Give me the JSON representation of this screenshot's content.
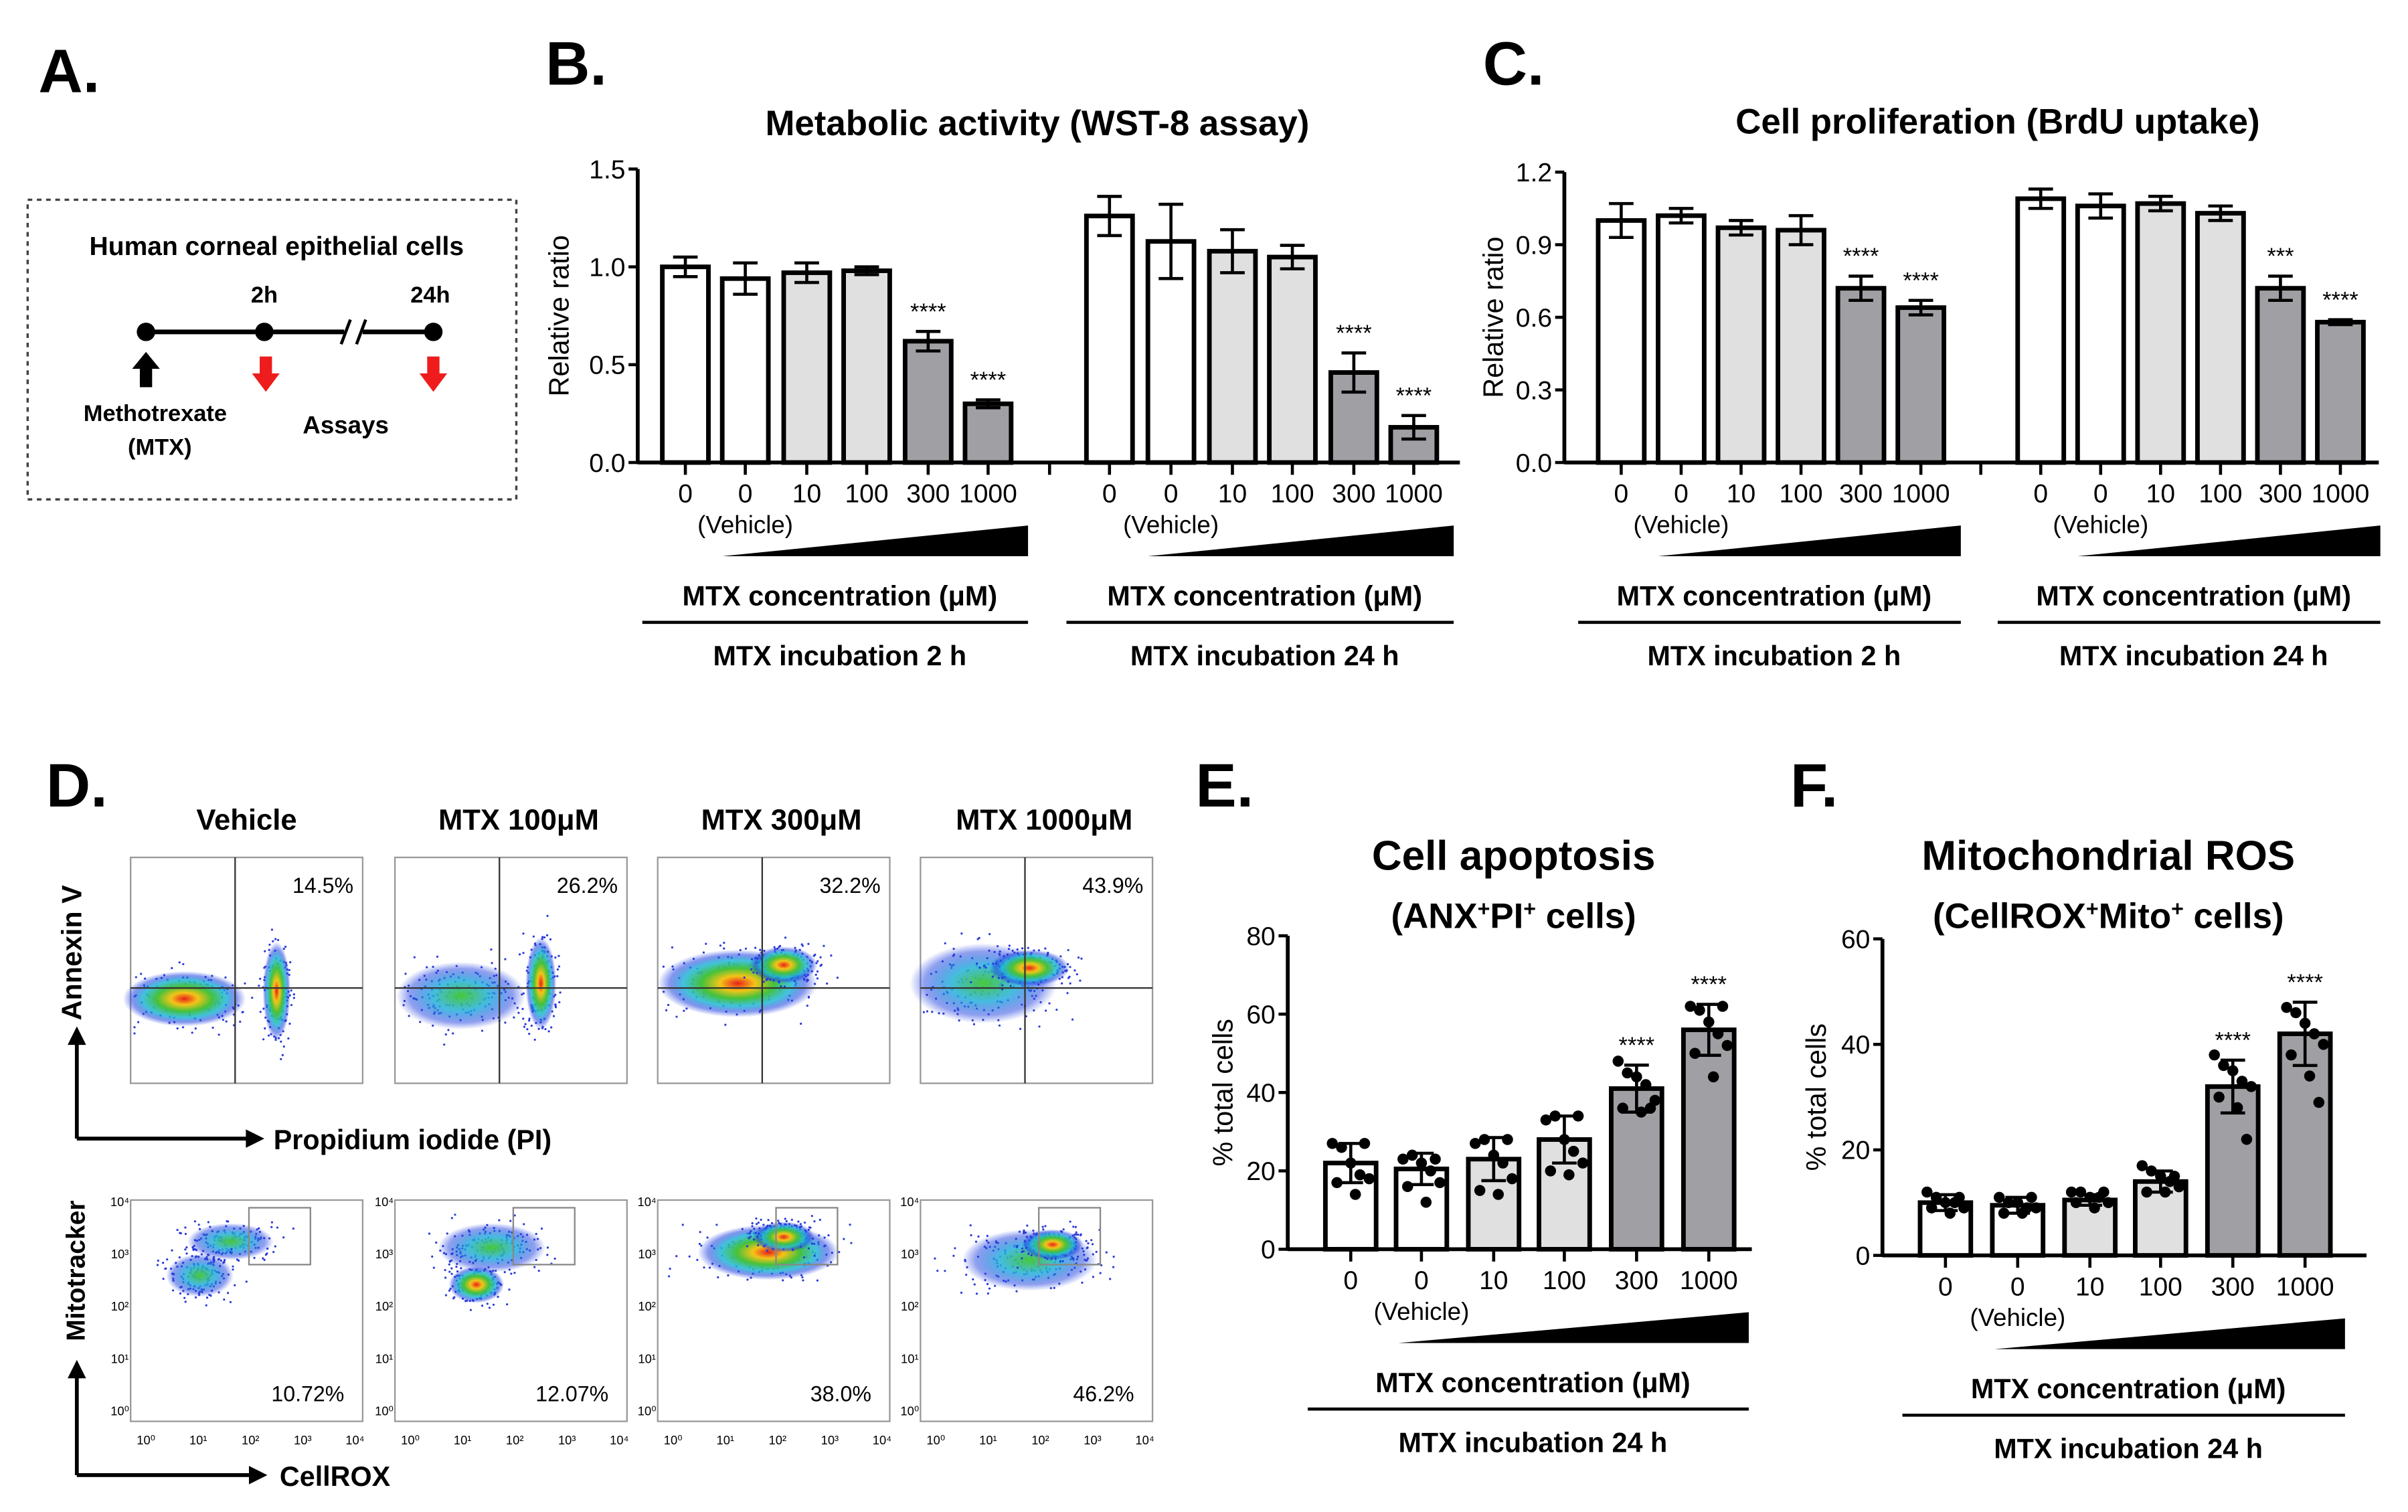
{
  "panel_letters": [
    "A.",
    "B.",
    "C.",
    "D.",
    "E.",
    "F."
  ],
  "panel_a": {
    "cell_title": "Human corneal epithelial cells",
    "time_2h": "2h",
    "time_24h": "24h",
    "drug_line1": "Methotrexate",
    "drug_line2": "(MTX)",
    "assays": "Assays",
    "title_color": "#3a2cf0",
    "assay_color": "#ee1c1c"
  },
  "panel_d": {
    "columns": [
      "Vehicle",
      "MTX 100μM",
      "MTX 300μM",
      "MTX 1000μM"
    ],
    "top_percents": [
      "14.5%",
      "26.2%",
      "32.2%",
      "43.9%"
    ],
    "bottom_percents": [
      "10.72%",
      "12.07%",
      "38.0%",
      "46.2%"
    ],
    "top_y_label": "Annexin V",
    "top_x_label": "Propidium iodide (PI)",
    "bottom_y_label": "Mitotracker",
    "bottom_x_label": "CellROX",
    "log_ticks": [
      "10⁰",
      "10¹",
      "10²",
      "10³",
      "10⁴"
    ]
  },
  "chart_data": [
    {
      "id": "B",
      "type": "bar",
      "title": "Metabolic activity (WST-8 assay)",
      "ylabel": "Relative ratio",
      "xlabel": "MTX concentration (μM)",
      "ylim": [
        0,
        1.5
      ],
      "yticks": [
        "0.0",
        "0.5",
        "1.0",
        "1.5"
      ],
      "ytick_values": [
        0,
        0.5,
        1.0,
        1.5
      ],
      "categories": [
        "0",
        "0",
        "10",
        "100",
        "300",
        "1000"
      ],
      "vehicle_label": "(Vehicle)",
      "fills": [
        "#ffffff",
        "#ffffff",
        "#e0e0e0",
        "#e0e0e0",
        "#a0a0a4",
        "#a0a0a4"
      ],
      "series": [
        {
          "name": "MTX incubation 2 h",
          "values": [
            1.0,
            0.94,
            0.97,
            0.98,
            0.62,
            0.3
          ],
          "errors": [
            0.05,
            0.08,
            0.05,
            0.02,
            0.05,
            0.02
          ],
          "significance": [
            "",
            "",
            "",
            "",
            "****",
            "****"
          ]
        },
        {
          "name": "MTX incubation 24 h",
          "values": [
            1.26,
            1.13,
            1.08,
            1.05,
            0.46,
            0.18
          ],
          "errors": [
            0.1,
            0.19,
            0.11,
            0.06,
            0.1,
            0.06
          ],
          "significance": [
            "",
            "",
            "",
            "",
            "****",
            "****"
          ]
        }
      ]
    },
    {
      "id": "C",
      "type": "bar",
      "title": "Cell proliferation (BrdU uptake)",
      "ylabel": "Relative ratio",
      "xlabel": "MTX concentration (μM)",
      "ylim": [
        0,
        1.2
      ],
      "yticks": [
        "0.0",
        "0.3",
        "0.6",
        "0.9",
        "1.2"
      ],
      "ytick_values": [
        0,
        0.3,
        0.6,
        0.9,
        1.2
      ],
      "categories": [
        "0",
        "0",
        "10",
        "100",
        "300",
        "1000"
      ],
      "vehicle_label": "(Vehicle)",
      "fills": [
        "#ffffff",
        "#ffffff",
        "#e0e0e0",
        "#e0e0e0",
        "#a0a0a4",
        "#a0a0a4"
      ],
      "series": [
        {
          "name": "MTX incubation 2 h",
          "values": [
            1.0,
            1.02,
            0.97,
            0.96,
            0.72,
            0.64
          ],
          "errors": [
            0.07,
            0.03,
            0.03,
            0.06,
            0.05,
            0.03
          ],
          "significance": [
            "",
            "",
            "",
            "",
            "****",
            "****"
          ]
        },
        {
          "name": "MTX incubation 24 h",
          "values": [
            1.09,
            1.06,
            1.07,
            1.03,
            0.72,
            0.58
          ],
          "errors": [
            0.04,
            0.05,
            0.03,
            0.03,
            0.05,
            0.01
          ],
          "significance": [
            "",
            "",
            "",
            "",
            "***",
            "****"
          ]
        }
      ]
    },
    {
      "id": "E",
      "type": "bar",
      "title": "Cell apoptosis",
      "subtitle_parts": [
        "(ANX",
        "+",
        "PI",
        "+",
        " cells)"
      ],
      "ylabel": "% total cells",
      "xlabel": "MTX concentration (μM)",
      "ylim": [
        0,
        80
      ],
      "yticks": [
        "0",
        "20",
        "40",
        "60",
        "80"
      ],
      "ytick_values": [
        0,
        20,
        40,
        60,
        80
      ],
      "categories": [
        "0",
        "0",
        "10",
        "100",
        "300",
        "1000"
      ],
      "vehicle_label": "(Vehicle)",
      "fills": [
        "#ffffff",
        "#ffffff",
        "#e0e0e0",
        "#e0e0e0",
        "#a0a0a4",
        "#a0a0a4"
      ],
      "series": [
        {
          "name": "MTX incubation 24 h",
          "values": [
            22,
            20.5,
            23,
            28,
            41,
            56
          ],
          "errors": [
            5,
            4,
            5.5,
            6,
            6,
            6.5
          ],
          "significance": [
            "",
            "",
            "",
            "",
            "****",
            "****"
          ],
          "points": [
            [
              27,
              26,
              22,
              19,
              18,
              17,
              14,
              27
            ],
            [
              23,
              24,
              22,
              20,
              17,
              16,
              12,
              23
            ],
            [
              27,
              28,
              24,
              22,
              18,
              15,
              14,
              28
            ],
            [
              33,
              34,
              28,
              25,
              22,
              20,
              19,
              34
            ],
            [
              48,
              45,
              44,
              42,
              38,
              36,
              35,
              36
            ],
            [
              62,
              61,
              58,
              55,
              52,
              50,
              44,
              62
            ]
          ]
        }
      ]
    },
    {
      "id": "F",
      "type": "bar",
      "title": "Mitochondrial ROS",
      "subtitle_parts": [
        "(CellROX",
        "+",
        "Mito",
        "+",
        " cells)"
      ],
      "ylabel": "% total cells",
      "xlabel": "MTX concentration (μM)",
      "ylim": [
        0,
        60
      ],
      "yticks": [
        "0",
        "20",
        "40",
        "60"
      ],
      "ytick_values": [
        0,
        20,
        40,
        60
      ],
      "categories": [
        "0",
        "0",
        "10",
        "100",
        "300",
        "1000"
      ],
      "vehicle_label": "(Vehicle)",
      "fills": [
        "#ffffff",
        "#ffffff",
        "#e0e0e0",
        "#e0e0e0",
        "#a0a0a4",
        "#a0a0a4"
      ],
      "series": [
        {
          "name": "MTX incubation 24 h",
          "values": [
            10,
            9.5,
            10.5,
            14,
            32,
            42
          ],
          "errors": [
            1.5,
            1.5,
            1,
            2,
            5,
            6
          ],
          "significance": [
            "",
            "",
            "",
            "",
            "****",
            "****"
          ],
          "points": [
            [
              12,
              11,
              10,
              10,
              9,
              9,
              8,
              11
            ],
            [
              11,
              10,
              10,
              9,
              9,
              8,
              8,
              11
            ],
            [
              12,
              12,
              11,
              11,
              10,
              10,
              9,
              12
            ],
            [
              17,
              16,
              15,
              14,
              13,
              12,
              12,
              15
            ],
            [
              38,
              36,
              35,
              33,
              32,
              30,
              28,
              22
            ],
            [
              47,
              46,
              44,
              42,
              40,
              38,
              34,
              29
            ]
          ]
        }
      ]
    }
  ]
}
